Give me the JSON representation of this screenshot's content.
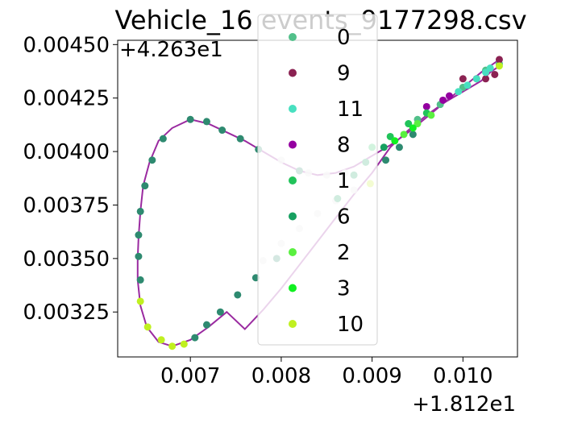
{
  "chart_data": {
    "type": "scatter",
    "title": "Vehicle_16 events_9177298.csv",
    "x_offset_label": "+1.812e1",
    "y_offset_label": "+4.263e1",
    "xlim": [
      0.0062,
      0.0106
    ],
    "ylim": [
      0.00304,
      0.00452
    ],
    "x_ticks": [
      0.007,
      0.008,
      0.009,
      0.01
    ],
    "x_tick_labels": [
      "0.007",
      "0.008",
      "0.009",
      "0.010"
    ],
    "y_ticks": [
      0.00325,
      0.0035,
      0.00375,
      0.004,
      0.00425,
      0.0045
    ],
    "y_tick_labels": [
      "0.00325",
      "0.00350",
      "0.00375",
      "0.00400",
      "0.00425",
      "0.00450"
    ],
    "legend_position": "upper center",
    "track": [
      [
        0.0104,
        0.0044
      ],
      [
        0.0103,
        0.00437
      ],
      [
        0.0102,
        0.00433
      ],
      [
        0.01,
        0.00428
      ],
      [
        0.0098,
        0.00423
      ],
      [
        0.0096,
        0.00417
      ],
      [
        0.0094,
        0.0041
      ],
      [
        0.0092,
        0.00402
      ],
      [
        0.009,
        0.0039
      ],
      [
        0.0088,
        0.0038
      ],
      [
        0.0086,
        0.00369
      ],
      [
        0.0084,
        0.00358
      ],
      [
        0.0082,
        0.00347
      ],
      [
        0.008,
        0.00336
      ],
      [
        0.0078,
        0.00326
      ],
      [
        0.0076,
        0.00317
      ],
      [
        0.0074,
        0.00325
      ],
      [
        0.0072,
        0.00318
      ],
      [
        0.007,
        0.00312
      ],
      [
        0.0068,
        0.00309
      ],
      [
        0.00665,
        0.00311
      ],
      [
        0.00652,
        0.00318
      ],
      [
        0.00645,
        0.00328
      ],
      [
        0.00642,
        0.0034
      ],
      [
        0.00642,
        0.0035
      ],
      [
        0.00643,
        0.0036
      ],
      [
        0.00645,
        0.00372
      ],
      [
        0.00648,
        0.00384
      ],
      [
        0.00655,
        0.00395
      ],
      [
        0.00665,
        0.00405
      ],
      [
        0.0068,
        0.00411
      ],
      [
        0.007,
        0.00415
      ],
      [
        0.0072,
        0.00413
      ],
      [
        0.0074,
        0.00409
      ],
      [
        0.0076,
        0.00405
      ],
      [
        0.0078,
        0.004
      ],
      [
        0.008,
        0.00395
      ],
      [
        0.0082,
        0.00391
      ],
      [
        0.0084,
        0.00389
      ],
      [
        0.0086,
        0.0039
      ],
      [
        0.0088,
        0.00393
      ],
      [
        0.009,
        0.00398
      ],
      [
        0.0092,
        0.00403
      ],
      [
        0.0094,
        0.00409
      ],
      [
        0.0096,
        0.00416
      ],
      [
        0.0098,
        0.00423
      ],
      [
        0.01,
        0.0043
      ],
      [
        0.0102,
        0.00437
      ],
      [
        0.0104,
        0.00443
      ]
    ],
    "series": [
      {
        "name": "0",
        "color": "#52c08a",
        "points": [
          [
            0.0095,
            0.00415
          ],
          [
            0.00975,
            0.00422
          ],
          [
            0.01,
            0.0043
          ],
          [
            0.01025,
            0.00438
          ],
          [
            0.0104,
            0.00441
          ]
        ]
      },
      {
        "name": "9",
        "color": "#8b2252",
        "points": [
          [
            0.0104,
            0.00443
          ],
          [
            0.01035,
            0.00436
          ],
          [
            0.01025,
            0.00434
          ],
          [
            0.01015,
            0.00434
          ],
          [
            0.01,
            0.00434
          ]
        ]
      },
      {
        "name": "11",
        "color": "#48e0c0",
        "points": [
          [
            0.00995,
            0.00428
          ],
          [
            0.01005,
            0.00431
          ],
          [
            0.01015,
            0.00434
          ],
          [
            0.01025,
            0.00437
          ],
          [
            0.0103,
            0.00439
          ]
        ]
      },
      {
        "name": "8",
        "color": "#9400a0",
        "points": [
          [
            0.0096,
            0.00421
          ],
          [
            0.00978,
            0.00424
          ],
          [
            0.00985,
            0.00426
          ]
        ]
      },
      {
        "name": "1",
        "color": "#21c35a",
        "points": [
          [
            0.0092,
            0.00407
          ],
          [
            0.0094,
            0.00413
          ],
          [
            0.0096,
            0.00418
          ],
          [
            0.009,
            0.00402
          ]
        ]
      },
      {
        "name": "6",
        "color": "#16a060",
        "points": [
          [
            0.00913,
            0.00402
          ],
          [
            0.00893,
            0.00395
          ],
          [
            0.0088,
            0.00389
          ],
          [
            0.00862,
            0.00378
          ]
        ]
      },
      {
        "name": "2",
        "color": "#5af040",
        "points": [
          [
            0.00935,
            0.00408
          ],
          [
            0.0095,
            0.00413
          ],
          [
            0.00965,
            0.00417
          ]
        ]
      },
      {
        "name": "3",
        "color": "#10f020",
        "points": [
          [
            0.00925,
            0.00405
          ],
          [
            0.00945,
            0.00411
          ]
        ]
      },
      {
        "name": "10",
        "color": "#c0f020",
        "points": [
          [
            0.00645,
            0.0033
          ],
          [
            0.00653,
            0.00318
          ],
          [
            0.00668,
            0.00312
          ],
          [
            0.0068,
            0.00309
          ],
          [
            0.00693,
            0.0031
          ],
          [
            0.00898,
            0.00385
          ],
          [
            0.0104,
            0.0044
          ]
        ]
      }
    ],
    "gray_points": [
      [
        0.0078,
        0.00349
      ],
      [
        0.008,
        0.00357
      ],
      [
        0.0082,
        0.00364
      ],
      [
        0.0084,
        0.00371
      ],
      [
        0.0086,
        0.00377
      ],
      [
        0.0088,
        0.00382
      ],
      [
        0.0083,
        0.0039
      ],
      [
        0.0085,
        0.00389
      ],
      [
        0.008,
        0.00396
      ],
      [
        0.0087,
        0.0039
      ]
    ],
    "dark_points": [
      [
        0.00645,
        0.0034
      ],
      [
        0.00643,
        0.00351
      ],
      [
        0.00643,
        0.00361
      ],
      [
        0.00645,
        0.00372
      ],
      [
        0.0065,
        0.00384
      ],
      [
        0.00658,
        0.00396
      ],
      [
        0.0067,
        0.00406
      ],
      [
        0.007,
        0.00415
      ],
      [
        0.00718,
        0.00414
      ],
      [
        0.00735,
        0.0041
      ],
      [
        0.00755,
        0.00406
      ],
      [
        0.00775,
        0.00401
      ],
      [
        0.00705,
        0.00313
      ],
      [
        0.00718,
        0.00319
      ],
      [
        0.00733,
        0.00325
      ],
      [
        0.00752,
        0.00333
      ],
      [
        0.00772,
        0.00341
      ],
      [
        0.00795,
        0.0035
      ],
      [
        0.0082,
        0.00391
      ],
      [
        0.00915,
        0.00396
      ],
      [
        0.0093,
        0.00402
      ],
      [
        0.00945,
        0.00408
      ]
    ],
    "dark_points_color": "#2e8a70",
    "line_color": "#9a2aa0"
  }
}
